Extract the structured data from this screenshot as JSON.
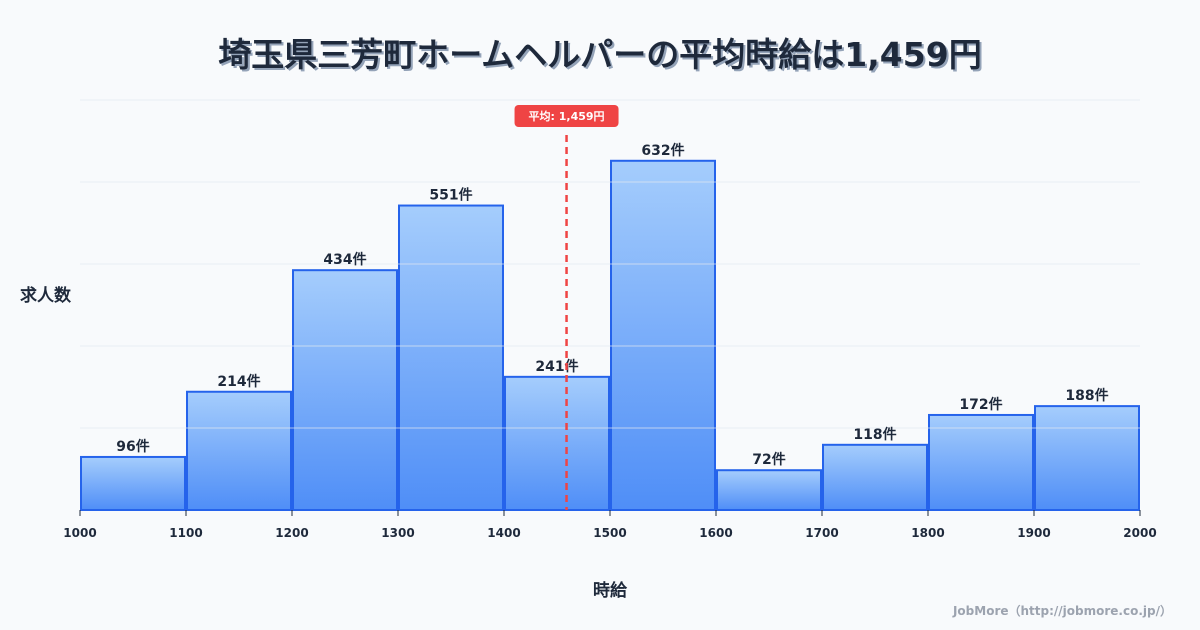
{
  "title": "埼玉県三芳町ホームヘルパーの平均時給は1,459円",
  "axes": {
    "ylabel": "求人数",
    "xlabel": "時給"
  },
  "average": {
    "label": "平均: 1,459円",
    "value": 1459
  },
  "credit": "JobMore（http://jobmore.co.jp/）",
  "colors": {
    "bar_top": "#a5cdfc",
    "bar_bottom": "#4f8ef7",
    "bar_border": "#2563eb",
    "avg_line": "#ef4444",
    "grid": "#e2e8f0",
    "text": "#1e293b"
  },
  "chart_data": {
    "type": "bar",
    "title": "埼玉県三芳町ホームヘルパーの平均時給は1,459円",
    "xlabel": "時給",
    "ylabel": "求人数",
    "bins": [
      [
        1000,
        1100
      ],
      [
        1100,
        1200
      ],
      [
        1200,
        1300
      ],
      [
        1300,
        1400
      ],
      [
        1400,
        1500
      ],
      [
        1500,
        1600
      ],
      [
        1600,
        1700
      ],
      [
        1700,
        1800
      ],
      [
        1800,
        1900
      ],
      [
        1900,
        2000
      ]
    ],
    "categories": [
      "1000-1100",
      "1100-1200",
      "1200-1300",
      "1300-1400",
      "1400-1500",
      "1500-1600",
      "1600-1700",
      "1700-1800",
      "1800-1900",
      "1900-2000"
    ],
    "values": [
      96,
      214,
      434,
      551,
      241,
      632,
      72,
      118,
      172,
      188
    ],
    "value_labels": [
      "96件",
      "214件",
      "434件",
      "551件",
      "241件",
      "632件",
      "72件",
      "118件",
      "172件",
      "188件"
    ],
    "x_ticks": [
      "1000",
      "1100",
      "1200",
      "1300",
      "1400",
      "1500",
      "1600",
      "1700",
      "1800",
      "1900",
      "2000"
    ],
    "xlim": [
      1000,
      2000
    ],
    "ylim": [
      0,
      742
    ],
    "grid": true,
    "annotations": [
      {
        "type": "vline",
        "x": 1459,
        "label": "平均: 1,459円"
      }
    ]
  }
}
